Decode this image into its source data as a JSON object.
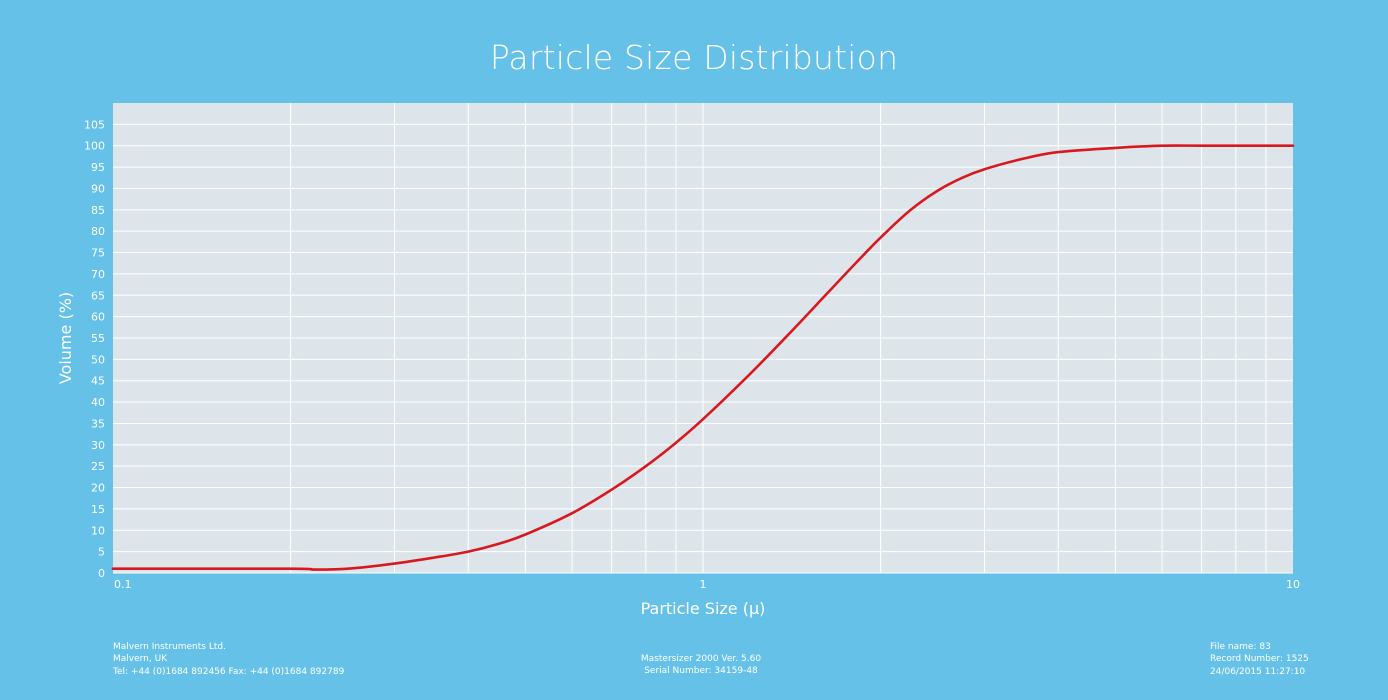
{
  "chart_data": {
    "type": "line",
    "title": "Particle Size Distribution",
    "xlabel": "Particle Size (µ)",
    "ylabel": "Volume (%)",
    "xscale": "log",
    "xlim": [
      0.1,
      10
    ],
    "ylim": [
      0,
      110
    ],
    "x_ticks": [
      0.1,
      1,
      10
    ],
    "x_tick_labels": [
      "0.1",
      "1",
      "10"
    ],
    "y_ticks": [
      0,
      5,
      10,
      15,
      20,
      25,
      30,
      35,
      40,
      45,
      50,
      55,
      60,
      65,
      70,
      75,
      80,
      85,
      90,
      95,
      100,
      105
    ],
    "grid": true,
    "series": [
      {
        "color": "#d7191f",
        "x": [
          0.1,
          0.2,
          0.22,
          0.25,
          0.3,
          0.35,
          0.4,
          0.45,
          0.5,
          0.6,
          0.7,
          0.8,
          0.9,
          1.0,
          1.2,
          1.4,
          1.6,
          1.8,
          2.0,
          2.25,
          2.5,
          2.75,
          3.0,
          3.5,
          4.0,
          5.0,
          6.0,
          7.0,
          8.0,
          10.0
        ],
        "y": [
          1.0,
          1.0,
          0.8,
          1.0,
          2.2,
          3.6,
          5.0,
          6.8,
          9.0,
          14.0,
          19.5,
          25.0,
          30.5,
          36.0,
          46.5,
          56.0,
          64.5,
          72.0,
          78.5,
          85.0,
          89.5,
          92.5,
          94.5,
          97.0,
          98.5,
          99.5,
          100.0,
          100.0,
          100.0,
          100.0
        ]
      }
    ]
  },
  "footer": {
    "left": [
      "Malvern Instruments Ltd.",
      "Malvern, UK",
      "Tel: +44 (0)1684 892456  Fax: +44 (0)1684 892789"
    ],
    "center": [
      "Mastersizer 2000 Ver. 5.60",
      "Serial Number: 34159-48"
    ],
    "right": [
      "File name: 83",
      "Record Number: 1525",
      "24/06/2015 11:27:10"
    ]
  }
}
